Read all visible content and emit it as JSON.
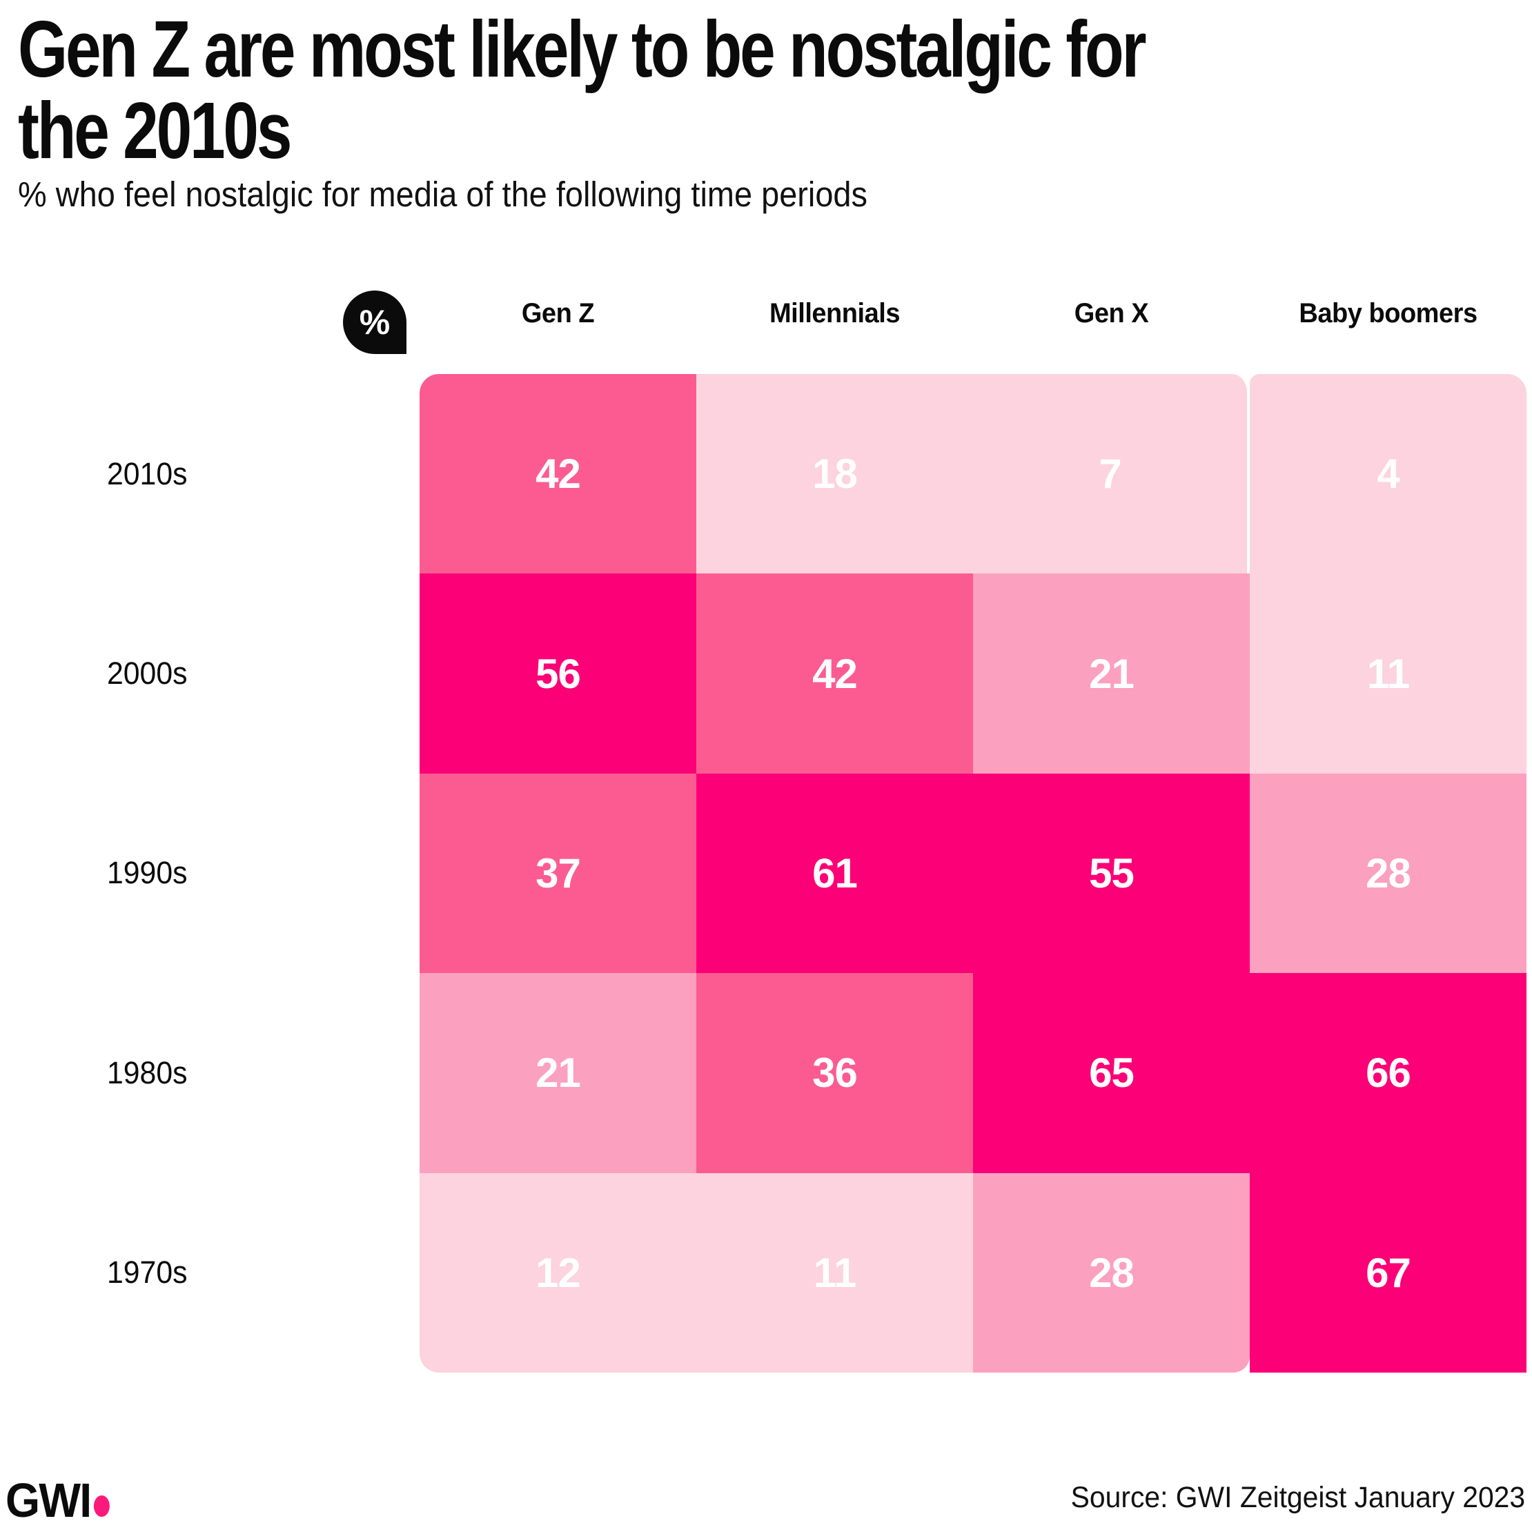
{
  "header": {
    "title_lines": [
      "Gen Z are most likely to be nostalgic for",
      "the 2010s"
    ],
    "subtitle": "% who feel nostalgic for media of the following time periods"
  },
  "unit_badge": {
    "label": "%",
    "icon": "percent-badge"
  },
  "footer": {
    "logo_text": "GWI",
    "logo_dot_color": "#fb1a7b",
    "source": "Source: GWI Zeitgeist January 2023"
  },
  "chart_data": {
    "type": "heatmap",
    "title": "Gen Z are most likely to be nostalgic for the 2010s",
    "subtitle": "% who feel nostalgic for media of the following time periods",
    "unit": "%",
    "columns": [
      "Gen Z",
      "Millennials",
      "Gen X",
      "Baby boomers"
    ],
    "row_labels": [
      "2010s",
      "2000s",
      "1990s",
      "1980s",
      "1970s"
    ],
    "rows": [
      {
        "label": "2010s",
        "values": [
          42,
          18,
          7,
          4
        ],
        "colors": [
          "#FC5B92",
          "#FCD3DF",
          "#FCD3DF",
          "#FCD3DF"
        ]
      },
      {
        "label": "2000s",
        "values": [
          56,
          42,
          21,
          11
        ],
        "colors": [
          "#FC0077",
          "#FC5B92",
          "#FCA0BF",
          "#FCD3DF"
        ]
      },
      {
        "label": "1990s",
        "values": [
          37,
          61,
          55,
          28
        ],
        "colors": [
          "#FC5B92",
          "#FC0077",
          "#FC0077",
          "#FCA0BF"
        ]
      },
      {
        "label": "1980s",
        "values": [
          21,
          36,
          65,
          66
        ],
        "colors": [
          "#FCA0BF",
          "#FC5B92",
          "#FC0077",
          "#FC0077"
        ]
      },
      {
        "label": "1970s",
        "values": [
          12,
          11,
          28,
          67
        ],
        "colors": [
          "#FCD3DF",
          "#FCD3DF",
          "#FCA0BF",
          "#FC0077"
        ]
      }
    ],
    "color_scale": {
      "darkest": "#FC0077",
      "medium": "#FC5B92",
      "light": "#FCA0BF",
      "lightest": "#FCD3DF",
      "value_text_color": "#ffffff"
    },
    "legend_position": "none",
    "grid": false
  }
}
